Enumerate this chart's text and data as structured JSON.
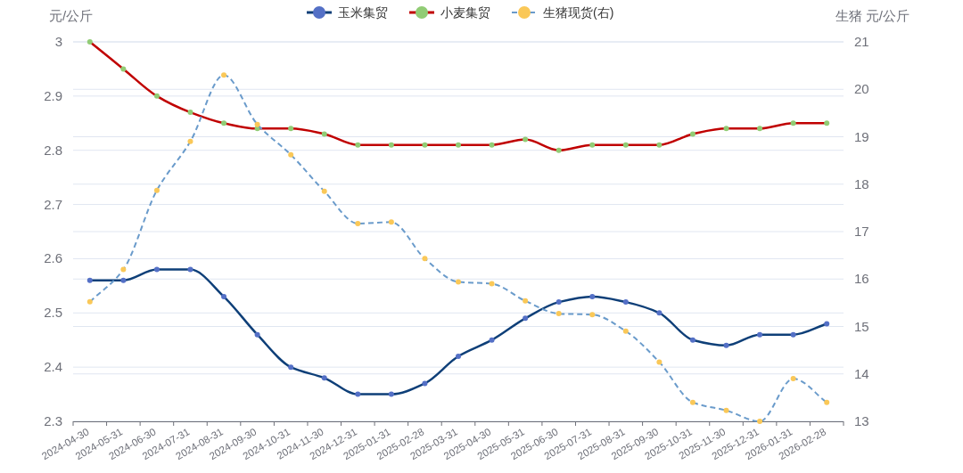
{
  "chart_data": {
    "type": "line",
    "ylabel": "元/公斤",
    "y2label": "生猪 元/公斤",
    "categories": [
      "2024-04-30",
      "2024-05-31",
      "2024-06-30",
      "2024-07-31",
      "2024-08-31",
      "2024-09-30",
      "2024-10-31",
      "2024-11-30",
      "2024-12-31",
      "2025-01-31",
      "2025-02-28",
      "2025-03-31",
      "2025-04-30",
      "2025-05-31",
      "2025-06-30",
      "2025-07-31",
      "2025-08-31",
      "2025-09-30",
      "2025-10-31",
      "2025-11-30",
      "2025-12-31",
      "2026-01-31",
      "2026-02-28"
    ],
    "series": [
      {
        "name": "玉米集贸",
        "color": "#0e3f78",
        "colors": [
          "#5470c6",
          "#5470c6",
          "#5470c6",
          "#5470c6",
          "#5470c6",
          "#5470c6",
          "#5470c6",
          "#5470c6",
          "#5470c6",
          "#5470c6",
          "#5470c6",
          "#5470c6",
          "#5470c6",
          "#5470c6",
          "#5470c6",
          "#5470c6",
          "#5470c6",
          "#5470c6",
          "#5470c6",
          "#5470c6",
          "#5470c6",
          "#5470c6",
          "#5470c6"
        ],
        "values": [
          2.56,
          2.56,
          2.58,
          2.58,
          2.53,
          2.46,
          2.4,
          2.38,
          2.35,
          2.35,
          2.37,
          2.42,
          2.45,
          2.49,
          2.52,
          2.53,
          2.52,
          2.5,
          2.45,
          2.44,
          2.46,
          2.46,
          2.48
        ]
      },
      {
        "name": "小麦集贸",
        "color": "#c00000",
        "colors": [
          "#91cc75",
          "#91cc75",
          "#91cc75",
          "#91cc75",
          "#91cc75",
          "#91cc75",
          "#91cc75",
          "#91cc75",
          "#91cc75",
          "#91cc75",
          "#91cc75",
          "#91cc75",
          "#91cc75",
          "#91cc75",
          "#91cc75",
          "#91cc75",
          "#91cc75",
          "#91cc75",
          "#91cc75",
          "#91cc75",
          "#91cc75",
          "#91cc75",
          "#91cc75"
        ],
        "values": [
          3.0,
          2.95,
          2.9,
          2.87,
          2.85,
          2.84,
          2.84,
          2.83,
          2.81,
          2.81,
          2.81,
          2.81,
          2.81,
          2.82,
          2.8,
          2.81,
          2.81,
          2.81,
          2.83,
          2.84,
          2.84,
          2.85,
          2.85
        ]
      },
      {
        "name": "生猪现货(右)",
        "color": "#6a9bcb",
        "colors": [
          "#fac858",
          "#fac858",
          "#fac858",
          "#fac858",
          "#fac858",
          "#fac858",
          "#fac858",
          "#fac858",
          "#fac858",
          "#fac858",
          "#fac858",
          "#fac858",
          "#fac858",
          "#fac858",
          "#fac858",
          "#fac858",
          "#fac858",
          "#fac858",
          "#fac858",
          "#fac858",
          "#fac858",
          "#fac858",
          "#fac858"
        ],
        "axis": "y2",
        "line_style": "dashed",
        "values": [
          15.52,
          16.2,
          17.87,
          18.9,
          20.3,
          19.26,
          18.62,
          17.85,
          17.17,
          17.2,
          16.43,
          15.94,
          15.9,
          15.54,
          15.27,
          15.25,
          14.9,
          14.25,
          13.4,
          13.23,
          13.0,
          13.9,
          13.4
        ]
      }
    ],
    "ylim": [
      2.3,
      3.0
    ],
    "yticks": [
      2.3,
      2.4,
      2.5,
      2.6,
      2.7,
      2.8,
      2.9,
      3
    ],
    "y2lim": [
      13,
      21
    ],
    "y2ticks": [
      13,
      14,
      15,
      16,
      17,
      18,
      19,
      20,
      21
    ],
    "grid": "y",
    "legend": "top",
    "marker": "circle"
  }
}
